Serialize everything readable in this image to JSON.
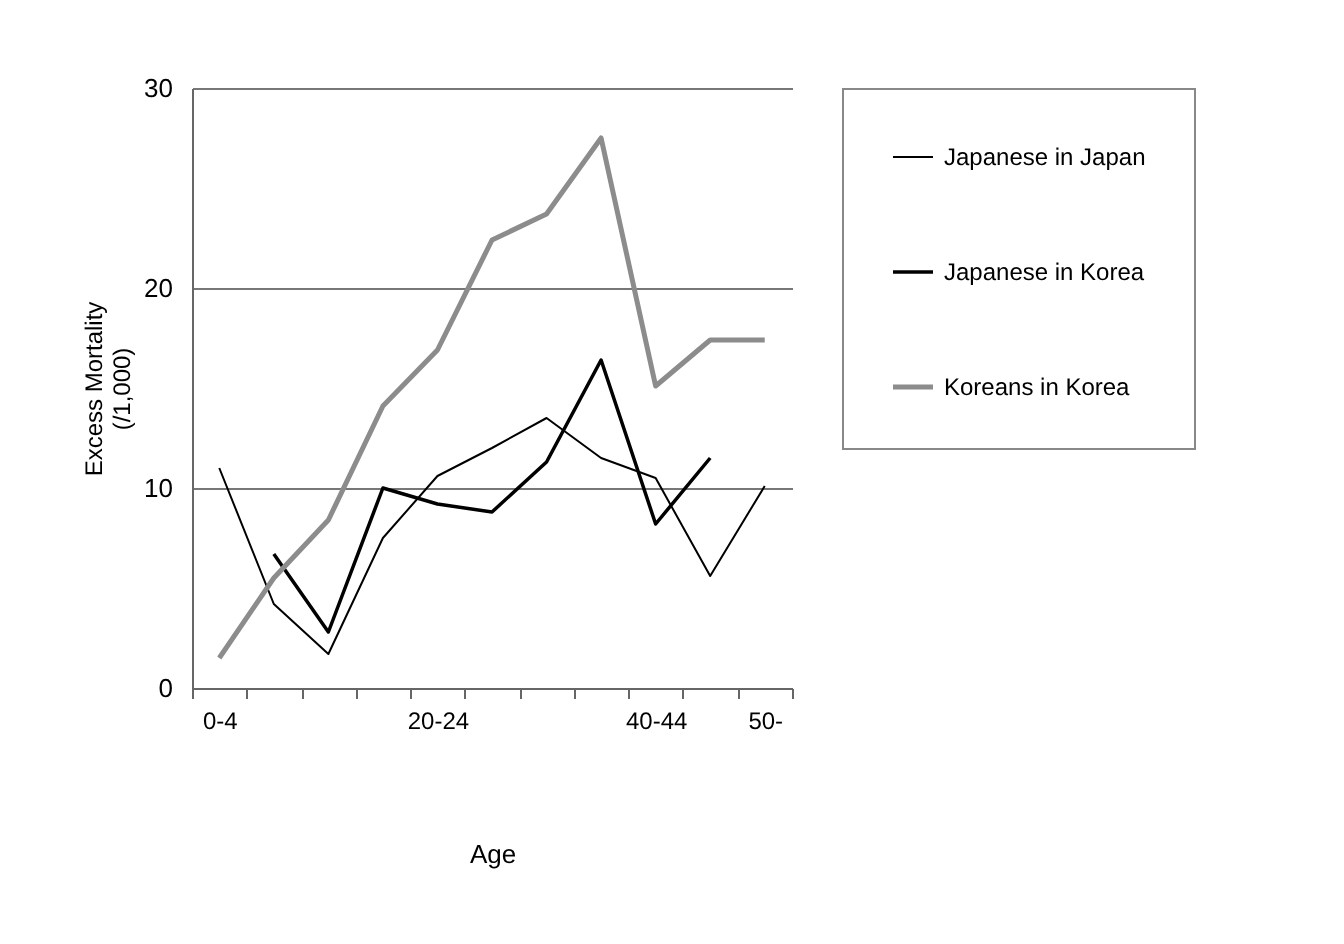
{
  "chart_data": {
    "type": "line",
    "xlabel": "Age",
    "ylabel": "Excess Mortality\n(/1,000)",
    "categories": [
      "0-4",
      null,
      null,
      null,
      "20-24",
      null,
      null,
      null,
      "40-44",
      null,
      "50-"
    ],
    "ylim": [
      0,
      30
    ],
    "yticks": [
      0,
      10,
      20,
      30
    ],
    "grid": "y",
    "legend": "right",
    "marker": "none",
    "line_style": "solid",
    "series": [
      {
        "name": "Japanese in Japan",
        "color": "#000000",
        "values": [
          11.0,
          4.2,
          1.7,
          7.5,
          10.6,
          12.0,
          13.5,
          11.5,
          10.5,
          5.6,
          10.1
        ]
      },
      {
        "name": "Japanese in Korea",
        "color": "#000000",
        "values": [
          null,
          6.7,
          2.8,
          10.0,
          9.2,
          8.8,
          11.3,
          16.4,
          8.2,
          11.5,
          null
        ]
      },
      {
        "name": "Koreans in Korea",
        "color": "#8c8c8c",
        "values": [
          1.5,
          5.5,
          8.4,
          14.1,
          16.9,
          22.4,
          23.7,
          27.5,
          15.1,
          17.4,
          17.4
        ]
      }
    ]
  }
}
